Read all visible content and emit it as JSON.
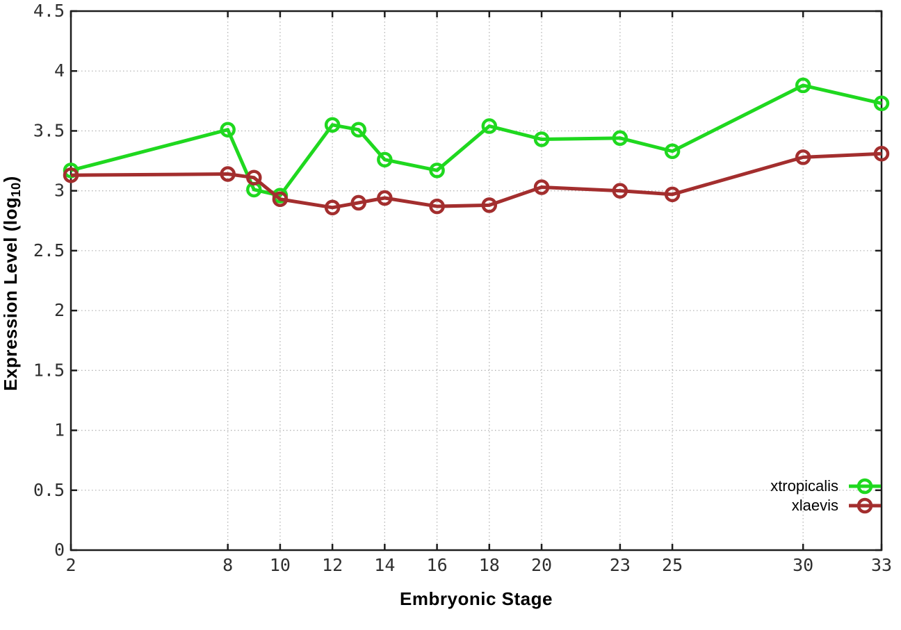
{
  "chart_data": {
    "type": "line",
    "title": "",
    "xlabel": "Embryonic Stage",
    "ylabel": "Expression Level (log10)",
    "ylabel_parts": {
      "main": "Expression Level (log",
      "sub": "10",
      "end": ")"
    },
    "x": [
      2,
      8,
      9,
      10,
      12,
      13,
      14,
      16,
      18,
      20,
      23,
      25,
      30,
      33
    ],
    "series": [
      {
        "name": "xtropicalis",
        "color": "#1fd81f",
        "marker": "open-circle",
        "values": [
          3.17,
          3.51,
          3.01,
          2.96,
          3.55,
          3.51,
          3.26,
          3.17,
          3.54,
          3.43,
          3.44,
          3.33,
          3.88,
          3.73
        ]
      },
      {
        "name": "xlaevis",
        "color": "#a32e2e",
        "marker": "open-circle",
        "values": [
          3.13,
          3.14,
          3.11,
          2.93,
          2.86,
          2.9,
          2.94,
          2.87,
          2.88,
          3.03,
          3.0,
          2.97,
          3.28,
          3.31
        ]
      }
    ],
    "xlim": [
      2,
      33
    ],
    "ylim": [
      0,
      4.5
    ],
    "xticks": [
      2,
      8,
      10,
      12,
      14,
      16,
      18,
      20,
      23,
      25,
      30,
      33
    ],
    "yticks": [
      0,
      0.5,
      1,
      1.5,
      2,
      2.5,
      3,
      3.5,
      4,
      4.5
    ],
    "ytick_labels": [
      "0",
      "0.5",
      "1",
      "1.5",
      "2",
      "2.5",
      "3",
      "3.5",
      "4",
      "4.5"
    ],
    "grid": "dotted",
    "legend_position": "bottom-right"
  },
  "style": {
    "background": "#ffffff",
    "border_color": "#1d1d1d",
    "grid_color": "#b5b5b5",
    "tick_label_color": "#2f2f2f",
    "axis_label_color": "#000000",
    "legend_text_color": "#000000"
  }
}
